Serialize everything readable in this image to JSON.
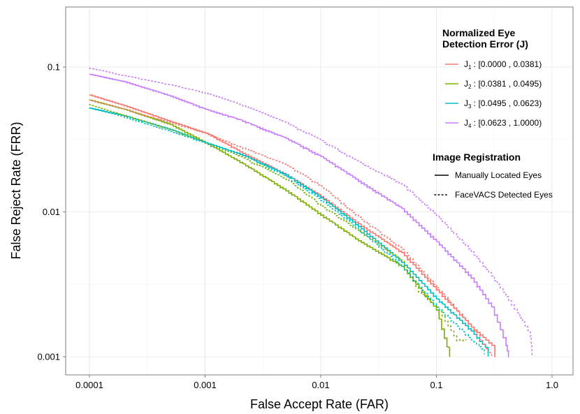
{
  "chart_data": {
    "type": "line",
    "title": "",
    "xlabel": "False Accept Rate (FAR)",
    "ylabel": "False Reject Rate (FRR)",
    "xscale": "log",
    "yscale": "log",
    "xlim": [
      4e-05,
      2.0
    ],
    "ylim": [
      0.00087,
      0.27
    ],
    "x_ticks": [
      0.0001,
      0.001,
      0.01,
      0.1,
      1.0
    ],
    "x_tick_labels": [
      "0.0001",
      "0.001",
      "0.01",
      "0.1",
      "1.0"
    ],
    "y_ticks": [
      0.001,
      0.01,
      0.1
    ],
    "y_tick_labels": [
      "0.001",
      "0.01",
      "0.1"
    ],
    "grid": true,
    "legend_placement": "top-right",
    "legend_groups": [
      {
        "title_lines": [
          "Normalized Eye",
          "Detection Error (J)"
        ],
        "entries": [
          {
            "symbol": "J",
            "subscript": "1",
            "range": " : [0.0000 , 0.0381)",
            "color": "#F8766D"
          },
          {
            "symbol": "J",
            "subscript": "2",
            "range": " : [0.0381 , 0.0495)",
            "color": "#7CAE00"
          },
          {
            "symbol": "J",
            "subscript": "3",
            "range": " : [0.0495 , 0.0623)",
            "color": "#00BFC4"
          },
          {
            "symbol": "J",
            "subscript": "4",
            "range": " : [0.0623 , 1.0000)",
            "color": "#C77CFF"
          }
        ]
      },
      {
        "title_lines": [
          "Image Registration"
        ],
        "entries": [
          {
            "label": "Manually Located Eyes",
            "linetype": "solid"
          },
          {
            "label": "FaceVACS Detected Eyes",
            "linetype": "dotted"
          }
        ]
      }
    ],
    "series": [
      {
        "name": "J1 manual",
        "group": "J1",
        "linetype": "solid",
        "color": "#F8766D",
        "x": [
          0.0001,
          0.0002,
          0.0005,
          0.001,
          0.002,
          0.005,
          0.01,
          0.02,
          0.05,
          0.1,
          0.2,
          0.32,
          0.32
        ],
        "y": [
          0.064,
          0.054,
          0.042,
          0.035,
          0.026,
          0.018,
          0.0128,
          0.0085,
          0.0052,
          0.0029,
          0.0016,
          0.00115,
          0.001
        ]
      },
      {
        "name": "J2 manual",
        "group": "J2",
        "linetype": "solid",
        "color": "#7CAE00",
        "x": [
          0.0001,
          0.0002,
          0.0005,
          0.001,
          0.002,
          0.005,
          0.01,
          0.02,
          0.05,
          0.1,
          0.13
        ],
        "y": [
          0.059,
          0.051,
          0.04,
          0.03,
          0.022,
          0.014,
          0.0095,
          0.0065,
          0.0042,
          0.0021,
          0.001
        ]
      },
      {
        "name": "J3 manual",
        "group": "J3",
        "linetype": "solid",
        "color": "#00BFC4",
        "x": [
          0.0001,
          0.0002,
          0.0005,
          0.001,
          0.002,
          0.005,
          0.01,
          0.02,
          0.05,
          0.1,
          0.2,
          0.28,
          0.28
        ],
        "y": [
          0.052,
          0.046,
          0.037,
          0.03,
          0.025,
          0.018,
          0.0125,
          0.0082,
          0.0045,
          0.0025,
          0.0015,
          0.0011,
          0.001
        ]
      },
      {
        "name": "J4 manual",
        "group": "J4",
        "linetype": "solid",
        "color": "#C77CFF",
        "x": [
          0.0001,
          0.0002,
          0.0005,
          0.001,
          0.002,
          0.005,
          0.01,
          0.02,
          0.05,
          0.1,
          0.2,
          0.3,
          0.4,
          0.42
        ],
        "y": [
          0.089,
          0.079,
          0.063,
          0.051,
          0.043,
          0.032,
          0.024,
          0.0168,
          0.0105,
          0.0062,
          0.0035,
          0.0022,
          0.0012,
          0.001
        ]
      },
      {
        "name": "J1 FaceVACS",
        "group": "J1",
        "linetype": "dotted",
        "color": "#F8766D",
        "x": [
          0.0001,
          0.0002,
          0.0005,
          0.001,
          0.002,
          0.005,
          0.01,
          0.02,
          0.05,
          0.1,
          0.2,
          0.3
        ],
        "y": [
          0.059,
          0.051,
          0.041,
          0.035,
          0.028,
          0.021,
          0.015,
          0.0095,
          0.0055,
          0.003,
          0.0016,
          0.001
        ]
      },
      {
        "name": "J2 FaceVACS",
        "group": "J2",
        "linetype": "dotted",
        "color": "#7CAE00",
        "x": [
          0.0001,
          0.0002,
          0.0005,
          0.001,
          0.002,
          0.005,
          0.01,
          0.02,
          0.05,
          0.07,
          0.1,
          0.15,
          0.18
        ],
        "y": [
          0.055,
          0.046,
          0.037,
          0.03,
          0.024,
          0.0168,
          0.011,
          0.0076,
          0.0046,
          0.0028,
          0.0022,
          0.0013,
          0.0013
        ]
      },
      {
        "name": "J3 FaceVACS",
        "group": "J3",
        "linetype": "dotted",
        "color": "#00BFC4",
        "x": [
          0.0001,
          0.0002,
          0.0005,
          0.001,
          0.002,
          0.005,
          0.01,
          0.02,
          0.05,
          0.1,
          0.2,
          0.26,
          0.26
        ],
        "y": [
          0.052,
          0.045,
          0.036,
          0.03,
          0.025,
          0.0175,
          0.012,
          0.0078,
          0.0042,
          0.0022,
          0.0013,
          0.0011,
          0.001
        ]
      },
      {
        "name": "J4 FaceVACS",
        "group": "J4",
        "linetype": "dotted",
        "color": "#C77CFF",
        "x": [
          0.0001,
          0.0002,
          0.0005,
          0.001,
          0.002,
          0.005,
          0.01,
          0.02,
          0.05,
          0.1,
          0.2,
          0.3,
          0.5,
          0.65,
          0.67
        ],
        "y": [
          0.098,
          0.087,
          0.075,
          0.066,
          0.055,
          0.041,
          0.031,
          0.0225,
          0.0155,
          0.0094,
          0.0053,
          0.0036,
          0.002,
          0.0014,
          0.001
        ]
      }
    ]
  }
}
